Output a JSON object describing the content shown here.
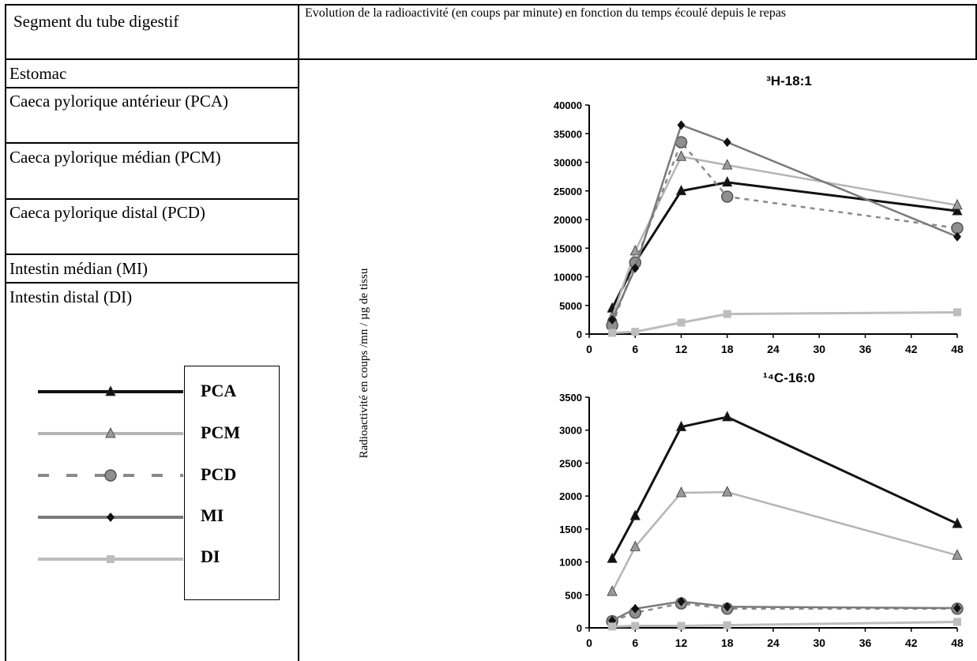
{
  "table": {
    "header_left": "Segment du tube digestif",
    "header_right": "Evolution de la radioactivité (en coups par minute) en fonction du temps écoulé depuis le repas",
    "rows": [
      "Estomac",
      "Caeca pylorique antérieur (PCA)",
      "Caeca pylorique médian (PCM)",
      "Caeca pylorique distal (PCD)",
      "Intestin médian (MI)",
      "Intestin distal (DI)"
    ]
  },
  "legend": {
    "items": [
      {
        "label": "PCA",
        "color": "#111111",
        "marker": "triangle",
        "dash": false
      },
      {
        "label": "PCM",
        "color": "#b5b5b5",
        "marker": "triangle",
        "dash": false
      },
      {
        "label": "PCD",
        "color": "#8a8a8a",
        "marker": "circle",
        "dash": true
      },
      {
        "label": "MI",
        "color": "#7a7a7a",
        "marker": "diamond",
        "dash": false
      },
      {
        "label": "DI",
        "color": "#bdbdbd",
        "marker": "square",
        "dash": false
      }
    ]
  },
  "y_axis_label": "Radioactivité en coups /mn / µg de tissu",
  "chart_data": [
    {
      "type": "line",
      "title": "³H-18:1",
      "x": [
        3,
        6,
        12,
        18,
        48
      ],
      "xticks": [
        "0",
        "6",
        "12",
        "18",
        "24",
        "30",
        "36",
        "42",
        "48"
      ],
      "ylim": [
        0,
        40000
      ],
      "yticks": [
        "0",
        "5000",
        "10000",
        "15000",
        "20000",
        "25000",
        "30000",
        "35000",
        "40000"
      ],
      "series": [
        {
          "name": "PCA",
          "values": [
            4500,
            12500,
            25000,
            26500,
            21500
          ]
        },
        {
          "name": "PCM",
          "values": [
            3000,
            14500,
            31000,
            29500,
            22500
          ]
        },
        {
          "name": "PCD",
          "values": [
            1500,
            12500,
            33500,
            24000,
            18500
          ]
        },
        {
          "name": "MI",
          "values": [
            2500,
            11500,
            36500,
            33500,
            17000
          ]
        },
        {
          "name": "DI",
          "values": [
            200,
            400,
            2000,
            3500,
            3800
          ]
        }
      ]
    },
    {
      "type": "line",
      "title": "¹⁴C-16:0",
      "x": [
        3,
        6,
        12,
        18,
        48
      ],
      "xticks": [
        "0",
        "6",
        "12",
        "18",
        "24",
        "30",
        "36",
        "42",
        "48"
      ],
      "ylim": [
        0,
        3500
      ],
      "yticks": [
        "0",
        "500",
        "1000",
        "1500",
        "2000",
        "2500",
        "3000",
        "3500"
      ],
      "series": [
        {
          "name": "PCA",
          "values": [
            1050,
            1700,
            3050,
            3200,
            1580
          ]
        },
        {
          "name": "PCM",
          "values": [
            550,
            1230,
            2050,
            2060,
            1100
          ]
        },
        {
          "name": "PCD",
          "values": [
            100,
            230,
            370,
            290,
            290
          ]
        },
        {
          "name": "MI",
          "values": [
            110,
            290,
            400,
            320,
            300
          ]
        },
        {
          "name": "DI",
          "values": [
            20,
            30,
            30,
            40,
            90
          ]
        }
      ]
    }
  ]
}
